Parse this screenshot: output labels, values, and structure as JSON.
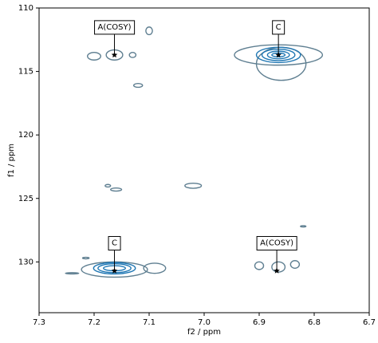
{
  "chart_data": {
    "type": "contour",
    "xlabel": "f2 / ppm",
    "ylabel": "f1 / ppm",
    "xlim": [
      7.3,
      6.7
    ],
    "ylim": [
      134,
      110
    ],
    "xticks": [
      7.3,
      7.2,
      7.1,
      {
        "value": 7,
        "label": "7.0"
      },
      6.9,
      6.8,
      6.7
    ],
    "yticks": [
      110,
      115,
      120,
      125,
      130
    ],
    "marker_color": "#000000",
    "contours": [
      {
        "x": 6.865,
        "y": 113.7,
        "wx": 0.08,
        "wy": 0.8,
        "color": "#5f7f91"
      },
      {
        "x": 6.86,
        "y": 114.4,
        "wx": 0.045,
        "wy": 1.3,
        "color": "#5f7f91"
      },
      {
        "x": 6.865,
        "y": 113.7,
        "wx": 0.04,
        "wy": 0.6,
        "color": "#1f77b4"
      },
      {
        "x": 6.865,
        "y": 113.7,
        "wx": 0.03,
        "wy": 0.45,
        "color": "#1f77b4"
      },
      {
        "x": 6.865,
        "y": 113.7,
        "wx": 0.02,
        "wy": 0.3,
        "color": "#1f77b4"
      },
      {
        "x": 6.865,
        "y": 113.7,
        "wx": 0.012,
        "wy": 0.15,
        "color": "#1f77b4"
      },
      {
        "x": 7.163,
        "y": 130.6,
        "wx": 0.06,
        "wy": 0.6,
        "color": "#5f7f91"
      },
      {
        "x": 7.163,
        "y": 130.5,
        "wx": 0.038,
        "wy": 0.45,
        "color": "#1f77b4"
      },
      {
        "x": 7.163,
        "y": 130.5,
        "wx": 0.03,
        "wy": 0.35,
        "color": "#1f77b4"
      },
      {
        "x": 7.163,
        "y": 130.5,
        "wx": 0.02,
        "wy": 0.2,
        "color": "#1f77b4"
      },
      {
        "x": 7.163,
        "y": 113.7,
        "wx": 0.015,
        "wy": 0.4,
        "color": "#5f7f91"
      },
      {
        "x": 7.2,
        "y": 113.8,
        "wx": 0.012,
        "wy": 0.3,
        "color": "#5f7f91"
      },
      {
        "x": 7.13,
        "y": 113.7,
        "wx": 0.006,
        "wy": 0.2,
        "color": "#5f7f91"
      },
      {
        "x": 7.1,
        "y": 111.8,
        "wx": 0.006,
        "wy": 0.3,
        "color": "#5f7f91"
      },
      {
        "x": 7.12,
        "y": 116.1,
        "wx": 0.008,
        "wy": 0.15,
        "color": "#5f7f91"
      },
      {
        "x": 7.175,
        "y": 124.0,
        "wx": 0.005,
        "wy": 0.1,
        "color": "#5f7f91"
      },
      {
        "x": 7.16,
        "y": 124.3,
        "wx": 0.01,
        "wy": 0.12,
        "color": "#5f7f91"
      },
      {
        "x": 7.02,
        "y": 124.0,
        "wx": 0.015,
        "wy": 0.2,
        "color": "#5f7f91"
      },
      {
        "x": 6.82,
        "y": 127.2,
        "wx": 0.005,
        "wy": 0.05,
        "color": "#5f7f91"
      },
      {
        "x": 7.24,
        "y": 130.9,
        "wx": 0.012,
        "wy": 0.05,
        "color": "#5f7f91"
      },
      {
        "x": 7.215,
        "y": 129.7,
        "wx": 0.006,
        "wy": 0.06,
        "color": "#5f7f91"
      },
      {
        "x": 6.9,
        "y": 130.3,
        "wx": 0.008,
        "wy": 0.3,
        "color": "#5f7f91"
      },
      {
        "x": 6.865,
        "y": 130.4,
        "wx": 0.012,
        "wy": 0.4,
        "color": "#5f7f91"
      },
      {
        "x": 6.835,
        "y": 130.2,
        "wx": 0.008,
        "wy": 0.3,
        "color": "#5f7f91"
      },
      {
        "x": 7.09,
        "y": 130.5,
        "wx": 0.02,
        "wy": 0.4,
        "color": "#5f7f91"
      }
    ],
    "peaks": [
      {
        "label": "A(COSY)",
        "x": 7.163,
        "y": 113.7
      },
      {
        "label": "C",
        "x": 6.865,
        "y": 113.7
      },
      {
        "label": "C",
        "x": 7.163,
        "y": 130.7
      },
      {
        "label": "A(COSY)",
        "x": 6.868,
        "y": 130.7
      }
    ]
  }
}
